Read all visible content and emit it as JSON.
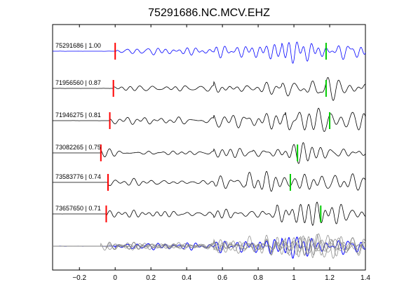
{
  "chart_data": {
    "type": "line",
    "title": "75291686.NC.MCV.EHZ",
    "xlabel": "",
    "ylabel": "",
    "xlim": [
      -0.35,
      1.4
    ],
    "x_ticks": [
      -0.2,
      0,
      0.2,
      0.4,
      0.6,
      0.8,
      1,
      1.2,
      1.4
    ],
    "x_tick_labels": [
      "−0.2",
      "0",
      "0.2",
      "0.4",
      "0.6",
      "0.8",
      "1",
      "1.2",
      "1.4"
    ],
    "grid": false,
    "colors": {
      "reference": "#0000ff",
      "trace": "#000000",
      "overlay": "#808080",
      "p_pick": "#ff0000",
      "s_pick": "#00cc00"
    },
    "traces": [
      {
        "event_id": "75291686",
        "label": "75291686 | 1.00",
        "cc": 1.0,
        "p_pick": 0.0,
        "s_pick": 1.18,
        "reference": true,
        "seed": 1
      },
      {
        "event_id": "71956560",
        "label": "71956560 | 0.87",
        "cc": 0.87,
        "p_pick": -0.01,
        "s_pick": 1.18,
        "reference": false,
        "seed": 2
      },
      {
        "event_id": "71946275",
        "label": "71946275 | 0.81",
        "cc": 0.81,
        "p_pick": -0.03,
        "s_pick": 1.2,
        "reference": false,
        "seed": 3
      },
      {
        "event_id": "73082265",
        "label": "73082265 | 0.75",
        "cc": 0.75,
        "p_pick": -0.08,
        "s_pick": 1.02,
        "reference": false,
        "seed": 4
      },
      {
        "event_id": "73583776",
        "label": "73583776 | 0.74",
        "cc": 0.74,
        "p_pick": -0.04,
        "s_pick": 0.98,
        "reference": false,
        "seed": 5
      },
      {
        "event_id": "73657650",
        "label": "73657650 | 0.71",
        "cc": 0.71,
        "p_pick": -0.05,
        "s_pick": 1.15,
        "reference": false,
        "seed": 6
      }
    ],
    "stack": {
      "name": "overlay",
      "count": 6
    }
  }
}
